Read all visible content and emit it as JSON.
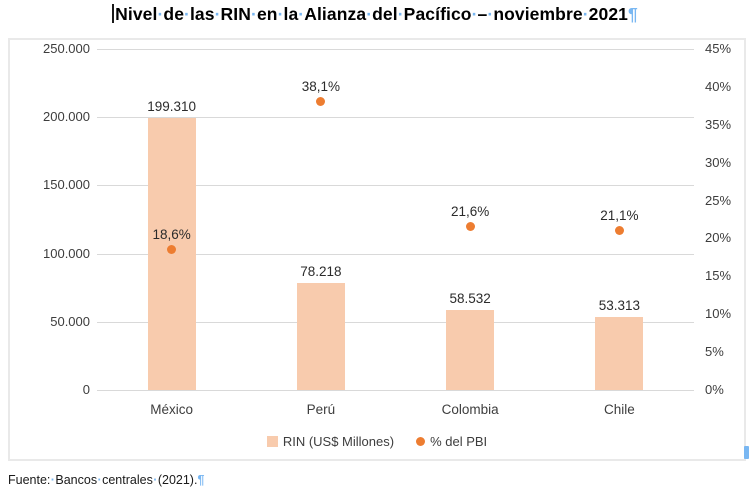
{
  "document": {
    "title": "Nivel de las RIN en la Alianza del Pacífico – noviembre 2021",
    "source_note": "Fuente: Bancos centrales (2021).",
    "formatting_marks": {
      "space_dot": "·",
      "pilcrow": "¶"
    }
  },
  "colors": {
    "bar_fill": "#F8CBAD",
    "dot_fill": "#ED7D31",
    "gridline": "#D9D9D9",
    "frame_border": "#E9E9E9",
    "formatting_marks_blue": "#79B7F2"
  },
  "chart_data": {
    "type": "bar",
    "subtype": "combo-bar-and-points",
    "title": "Nivel de las RIN en la Alianza del Pacífico – noviembre 2021",
    "categories": [
      "México",
      "Perú",
      "Colombia",
      "Chile"
    ],
    "series": [
      {
        "name": "RIN (US$ Millones)",
        "type": "bar",
        "axis": "left",
        "values": [
          199310,
          78218,
          58532,
          53313
        ],
        "labels": [
          "199.310",
          "78.218",
          "58.532",
          "53.313"
        ],
        "color": "#F8CBAD"
      },
      {
        "name": "% del PBI",
        "type": "scatter",
        "axis": "right",
        "values": [
          18.6,
          38.1,
          21.6,
          21.1
        ],
        "labels": [
          "18,6%",
          "38,1%",
          "21,6%",
          "21,1%"
        ],
        "color": "#ED7D31"
      }
    ],
    "left_axis": {
      "min": 0,
      "max": 250000,
      "step": 50000,
      "tick_labels": [
        "250.000",
        "200.000",
        "150.000",
        "100.000",
        "50.000",
        "0"
      ]
    },
    "right_axis": {
      "min": 0,
      "max": 45,
      "step": 5,
      "tick_labels": [
        "45%",
        "40%",
        "35%",
        "30%",
        "25%",
        "20%",
        "15%",
        "10%",
        "5%",
        "0%"
      ]
    },
    "grid": true,
    "legend_position": "bottom",
    "legend": [
      "RIN (US$ Millones)",
      "% del PBI"
    ]
  }
}
